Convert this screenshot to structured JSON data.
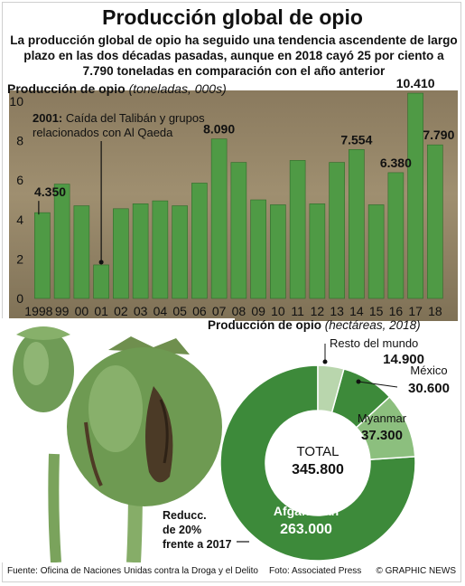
{
  "title": "Producción global de opio",
  "subtitle": "La producción global de opio ha seguido una tendencia ascendente de largo plazo en las dos décadas pasadas, aunque en 2018 cayó 25 por ciento a 7.790 toneladas en comparación con el año anterior",
  "colors": {
    "bar": "#4f9a45",
    "bar_stroke": "#2f6b2a",
    "donut_dark": "#3d8a3a",
    "donut_light": "#8cbf7e",
    "donut_pale": "#b9d6ad",
    "text": "#111111"
  },
  "chart_data": [
    {
      "type": "bar",
      "title": "Producción de opio",
      "unit_label": "(toneladas, 000s)",
      "categories": [
        "1998",
        "99",
        "00",
        "01",
        "02",
        "03",
        "04",
        "05",
        "06",
        "07",
        "08",
        "09",
        "10",
        "11",
        "12",
        "13",
        "14",
        "15",
        "16",
        "17",
        "18"
      ],
      "values": [
        4.35,
        5.8,
        4.7,
        1.7,
        4.55,
        4.8,
        4.95,
        4.7,
        5.85,
        8.09,
        6.9,
        5.0,
        4.75,
        7.0,
        4.8,
        6.9,
        7.554,
        4.75,
        6.38,
        10.41,
        7.79
      ],
      "ylim": [
        0,
        10
      ],
      "yticks": [
        "0",
        "2",
        "4",
        "6",
        "8",
        "10"
      ],
      "data_labels": [
        {
          "index": 0,
          "text": "4.350"
        },
        {
          "index": 9,
          "text": "8.090"
        },
        {
          "index": 16,
          "text": "7.554"
        },
        {
          "index": 18,
          "text": "6.380"
        },
        {
          "index": 19,
          "text": "10.410"
        },
        {
          "index": 20,
          "text": "7.790"
        }
      ],
      "annotation": {
        "index": 3,
        "year": "2001:",
        "text_line1": "Caída del Talibán y grupos",
        "text_line2": "relacionados con Al Qaeda"
      },
      "grid": false
    },
    {
      "type": "pie",
      "title": "Producción de opio",
      "unit_label": "(hectáreas, 2018)",
      "total_label": "TOTAL",
      "total_value": "345.800",
      "slices": [
        {
          "name": "Afganistán",
          "value": 263000,
          "label": "263.000"
        },
        {
          "name": "Myanmar",
          "value": 37300,
          "label": "37.300"
        },
        {
          "name": "México",
          "value": 30600,
          "label": "30.600"
        },
        {
          "name": "Resto del mundo",
          "value": 14900,
          "label": "14.900"
        }
      ],
      "note_line1": "Reducc.",
      "note_line2": "de 20%",
      "note_line3": "frente a 2017"
    }
  ],
  "footer": {
    "source": "Fuente: Oficina de Naciones Unidas contra la Droga y el Delito",
    "photo_credit": "Foto: Associated Press",
    "copyright": "© GRAPHIC NEWS"
  },
  "watermark": "GRAPHIC NEWS"
}
